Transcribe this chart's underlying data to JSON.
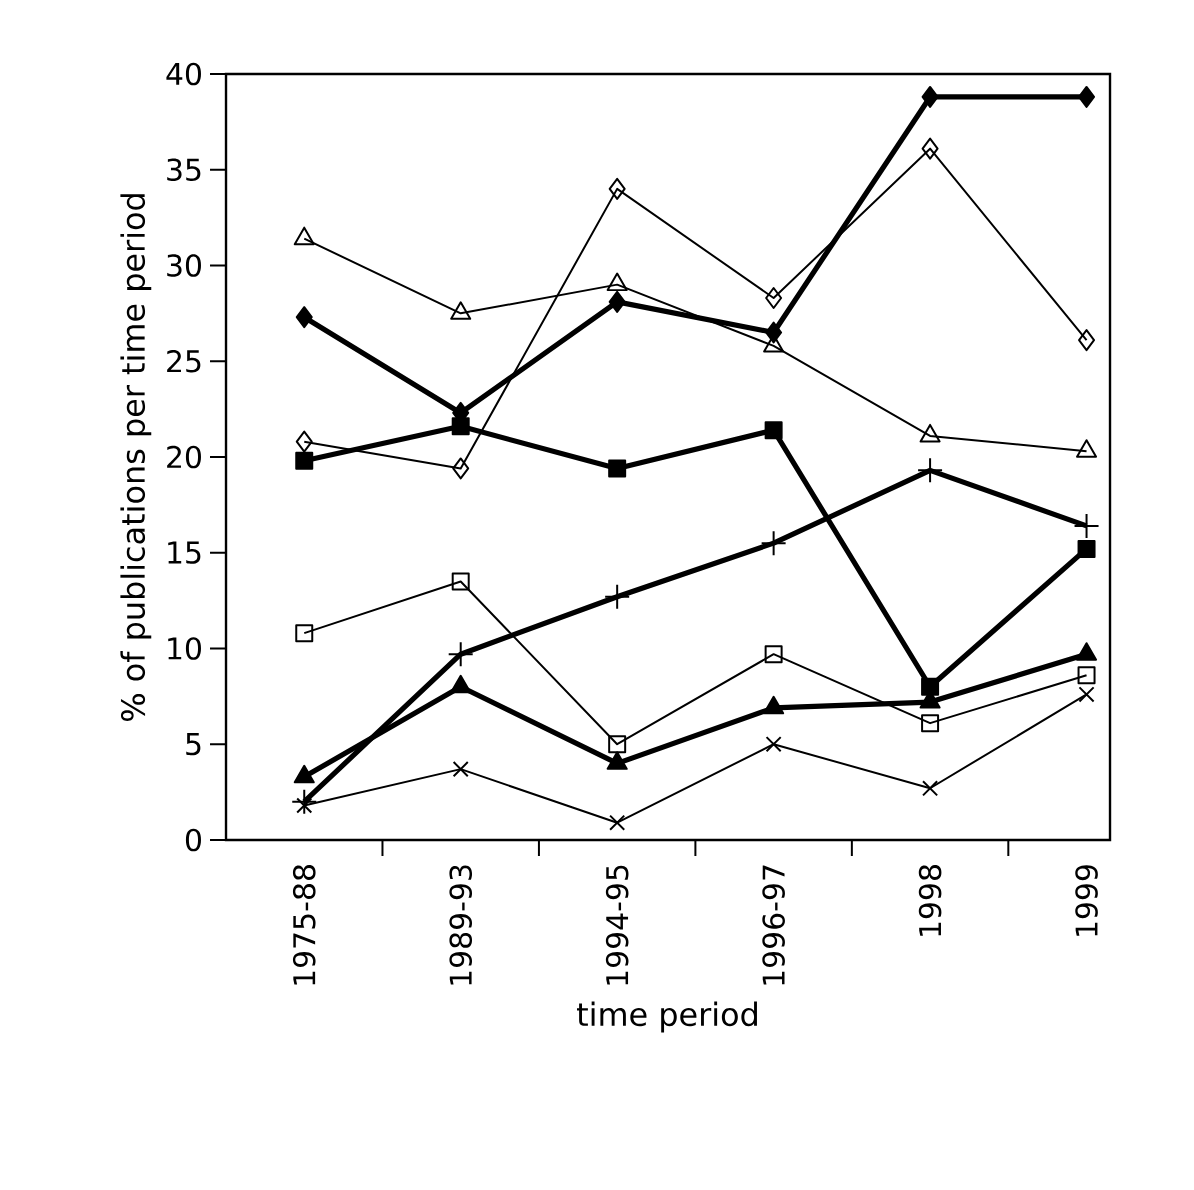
{
  "chart_data": {
    "type": "line",
    "xlabel": "time period",
    "ylabel": "% of publications per time period",
    "categories": [
      "1975-88",
      "1989-93",
      "1994-95",
      "1996-97",
      "1998",
      "1999"
    ],
    "ylim": [
      0,
      40
    ],
    "yticks": [
      0,
      5,
      10,
      15,
      20,
      25,
      30,
      35,
      40
    ],
    "grid": false,
    "series": [
      {
        "color": "#000000",
        "marker": "diamond",
        "values": [
          27.3,
          22.3,
          28.1,
          26.5,
          38.8,
          38.8
        ]
      },
      {
        "color": "#000000",
        "marker": "diamond",
        "values": [
          20.8,
          19.4,
          34.0,
          28.3,
          36.1,
          26.1
        ]
      },
      {
        "color": "#000000",
        "marker": "triangle",
        "values": [
          31.4,
          27.5,
          29.0,
          25.8,
          21.1,
          20.3
        ]
      },
      {
        "color": "#000000",
        "marker": "square",
        "values": [
          19.8,
          21.6,
          19.4,
          21.4,
          8.0,
          15.2
        ]
      },
      {
        "color": "#000000",
        "marker": "plus",
        "values": [
          2.0,
          9.7,
          12.7,
          15.5,
          19.3,
          16.4
        ]
      },
      {
        "color": "#000000",
        "marker": "square",
        "values": [
          10.8,
          13.5,
          5.0,
          9.7,
          6.1,
          8.6
        ]
      },
      {
        "color": "#000000",
        "marker": "triangle",
        "values": [
          3.3,
          8.0,
          4.0,
          6.9,
          7.2,
          9.7
        ]
      },
      {
        "color": "#000000",
        "marker": "cross",
        "values": [
          1.8,
          3.7,
          0.9,
          5.0,
          2.7,
          7.6
        ]
      }
    ]
  }
}
